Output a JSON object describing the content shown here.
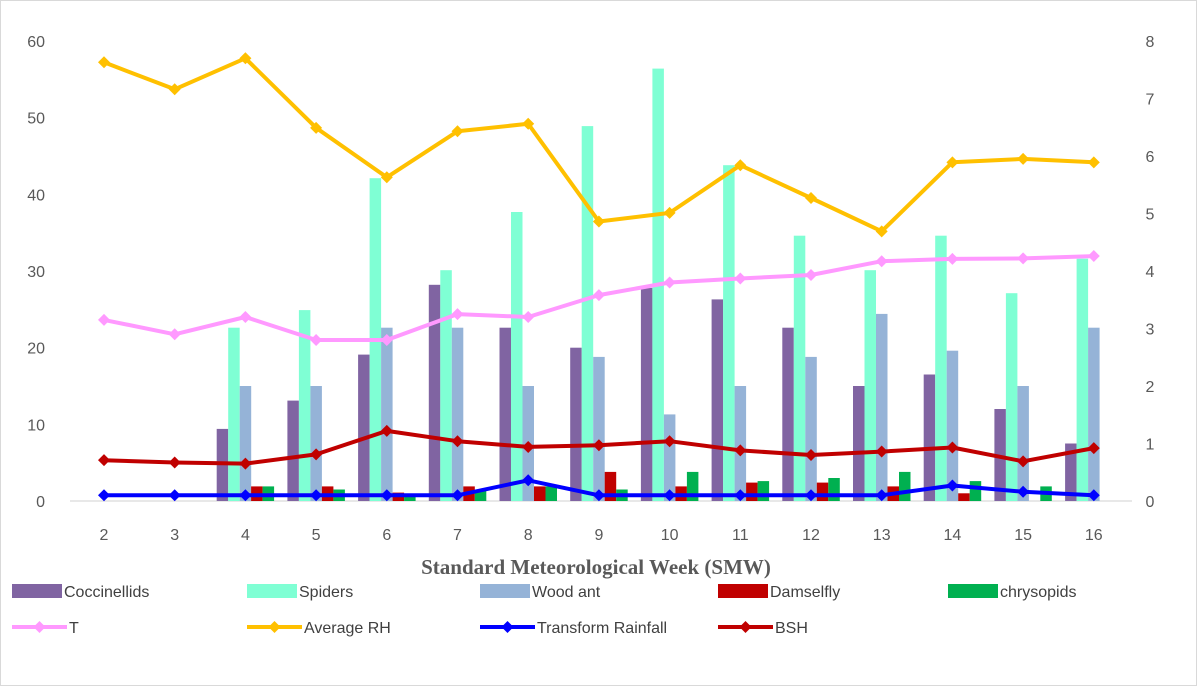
{
  "chart_data": {
    "type": "bar",
    "xlabel": "Standard Meteorological Week (SMW)",
    "categories": [
      "2",
      "3",
      "4",
      "5",
      "6",
      "7",
      "8",
      "9",
      "10",
      "11",
      "12",
      "13",
      "14",
      "15",
      "16"
    ],
    "left_axis": {
      "min": 0,
      "max": 60,
      "ticks": [
        "0",
        "10",
        "20",
        "30",
        "40",
        "50",
        "60"
      ]
    },
    "right_axis": {
      "min": 0,
      "max": 8,
      "ticks": [
        "0",
        "1",
        "2",
        "3",
        "4",
        "5",
        "6",
        "7",
        "8"
      ]
    },
    "grid": false,
    "legend_position": "bottom",
    "bar_series": [
      {
        "name": "Coccinellids",
        "color": "#8064a2",
        "axis": "left",
        "values": [
          0,
          0,
          9.4,
          13.1,
          19.1,
          28.2,
          22.6,
          20.0,
          27.8,
          26.3,
          22.6,
          15.0,
          16.5,
          12.0,
          7.5
        ]
      },
      {
        "name": "Spiders",
        "color": "#7fffd4",
        "axis": "left",
        "values": [
          0,
          0,
          22.6,
          24.9,
          42.1,
          30.1,
          37.7,
          48.9,
          56.4,
          43.8,
          34.6,
          30.1,
          34.6,
          27.1,
          31.6
        ]
      },
      {
        "name": "Wood ant",
        "color": "#95b3d7",
        "axis": "left",
        "values": [
          0,
          0,
          15.0,
          15.0,
          22.6,
          22.6,
          15.0,
          18.8,
          11.3,
          15.0,
          18.8,
          24.4,
          19.6,
          15.0,
          22.6
        ]
      },
      {
        "name": "Damselfly",
        "color": "#c00000",
        "axis": "left",
        "values": [
          0,
          0,
          1.9,
          1.9,
          1.1,
          1.9,
          1.9,
          3.8,
          1.9,
          2.4,
          2.4,
          1.9,
          1.0,
          0,
          0
        ]
      },
      {
        "name": "chrysopids",
        "color": "#00b050",
        "axis": "left",
        "values": [
          0,
          0,
          1.9,
          1.5,
          0.8,
          1.5,
          1.9,
          1.5,
          3.8,
          2.6,
          3.0,
          3.8,
          2.6,
          1.9,
          0
        ]
      }
    ],
    "line_series": [
      {
        "name": "T",
        "color": "#ff99ff",
        "axis": "right",
        "values": [
          3.15,
          2.9,
          3.2,
          2.8,
          2.8,
          3.25,
          3.2,
          3.58,
          3.8,
          3.87,
          3.93,
          4.17,
          4.21,
          4.22,
          4.26
        ]
      },
      {
        "name": "Average RH",
        "color": "#ffc000",
        "axis": "right",
        "values": [
          7.63,
          7.16,
          7.7,
          6.49,
          5.63,
          6.43,
          6.56,
          4.86,
          5.01,
          5.84,
          5.27,
          4.69,
          5.89,
          5.95,
          5.89
        ]
      },
      {
        "name": "Transform Rainfall",
        "color": "#0000ff",
        "axis": "right",
        "values": [
          0.1,
          0.1,
          0.1,
          0.1,
          0.1,
          0.1,
          0.36,
          0.1,
          0.1,
          0.1,
          0.1,
          0.1,
          0.27,
          0.16,
          0.1
        ]
      },
      {
        "name": "BSH",
        "color": "#c00000",
        "axis": "right",
        "values": [
          0.71,
          0.67,
          0.65,
          0.81,
          1.22,
          1.04,
          0.94,
          0.97,
          1.04,
          0.88,
          0.8,
          0.86,
          0.93,
          0.69,
          0.92
        ]
      }
    ]
  }
}
